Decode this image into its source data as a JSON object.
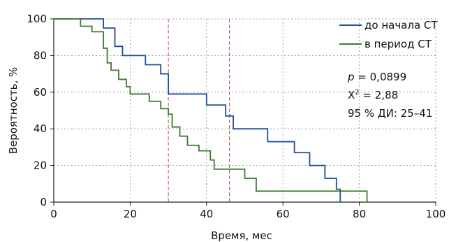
{
  "chart_data": {
    "type": "line",
    "step": true,
    "xlabel": "Время, мес",
    "ylabel": "Вероятность, %",
    "xlim": [
      0,
      100
    ],
    "ylim": [
      0,
      100
    ],
    "xticks": [
      0,
      20,
      40,
      60,
      80,
      100
    ],
    "yticks": [
      0,
      20,
      40,
      60,
      80,
      100
    ],
    "x_tick_labels": [
      "0",
      "20",
      "40",
      "60",
      "80",
      "100"
    ],
    "y_tick_labels": [
      "0",
      "20",
      "40",
      "60",
      "80",
      "100"
    ],
    "grid": true,
    "legend_position": "top-right",
    "series": [
      {
        "name": "до начала СТ",
        "color": "#1f4e9c",
        "x": [
          0,
          13,
          16,
          18,
          21,
          24,
          28,
          30,
          40,
          45,
          47,
          56,
          63,
          67,
          71,
          74,
          75
        ],
        "y": [
          100,
          95,
          85,
          80,
          80,
          75,
          70,
          59,
          53,
          47,
          40,
          33,
          27,
          20,
          13,
          7,
          0
        ]
      },
      {
        "name": "в период СТ",
        "color": "#3d7a2e",
        "x": [
          0,
          7,
          10,
          13,
          14,
          15,
          17,
          19,
          20,
          25,
          28,
          30,
          31,
          33,
          35,
          38,
          41,
          42,
          50,
          53,
          74,
          82
        ],
        "y": [
          100,
          96,
          93,
          84,
          76,
          72,
          67,
          63,
          59,
          55,
          51,
          48,
          41,
          36,
          31,
          28,
          23,
          18,
          13,
          6,
          6,
          0
        ]
      }
    ],
    "reference_lines": [
      {
        "x": 30,
        "color": "#b5542f",
        "style": "dashed"
      },
      {
        "x": 46,
        "color": "#b5542f",
        "style": "dashed"
      }
    ],
    "annotations": {
      "p_symbol": "p",
      "p_value": " = 0,0899",
      "chi_symbol": "X",
      "chi_sup": "2",
      "chi_value": " = 2,88",
      "ci_text": "95 % ДИ: 25–41"
    }
  }
}
